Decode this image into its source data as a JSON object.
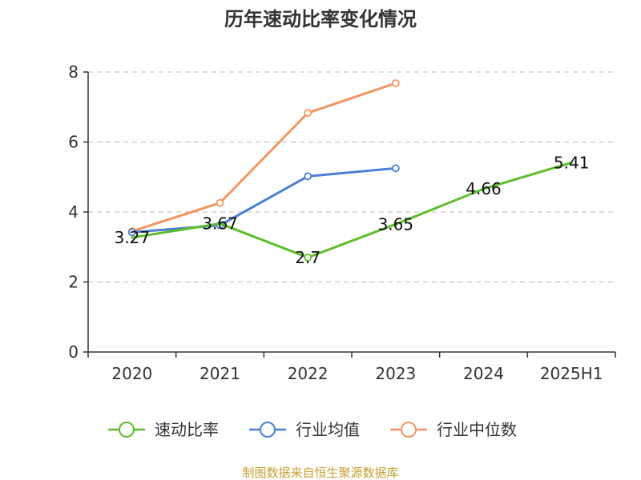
{
  "chart_data": {
    "type": "line",
    "title": "历年速动比率变化情况",
    "categories": [
      "2020",
      "2021",
      "2022",
      "2023",
      "2024",
      "2025H1"
    ],
    "ylim": [
      0,
      8
    ],
    "yticks": [
      "0",
      "2",
      "4",
      "6",
      "8"
    ],
    "grid": true,
    "legend_position": "bottom",
    "series": [
      {
        "name": "速动比率",
        "color": "#5dbe2a",
        "values": [
          3.27,
          3.67,
          2.7,
          3.65,
          4.66,
          5.41
        ],
        "labels": [
          "3.27",
          "3.67",
          "2.7",
          "3.65",
          "4.66",
          "5.41"
        ],
        "markers": [
          false,
          false,
          true,
          false,
          false,
          false
        ]
      },
      {
        "name": "行业均值",
        "color": "#4a7fd6",
        "values": [
          3.42,
          3.62,
          5.02,
          5.25,
          null,
          null
        ],
        "markers": [
          true,
          true,
          true,
          true,
          false,
          false
        ]
      },
      {
        "name": "行业中位数",
        "color": "#f49461",
        "values": [
          3.45,
          4.26,
          6.83,
          7.68,
          null,
          null
        ],
        "markers": [
          true,
          true,
          true,
          true,
          false,
          false
        ]
      }
    ]
  },
  "source_text": "制图数据来自恒生聚源数据库",
  "source_color": "#c4a030"
}
